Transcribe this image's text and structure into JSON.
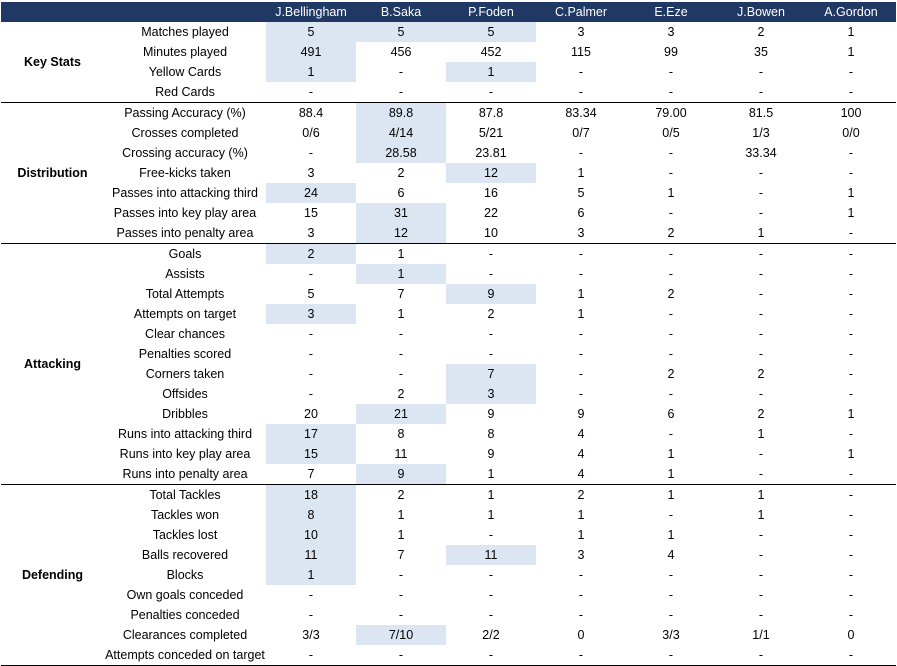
{
  "highlight_color": "#dce6f2",
  "header_color": "#1f3864",
  "players": [
    "J.Bellingham",
    "B.Saka",
    "P.Foden",
    "C.Palmer",
    "E.Eze",
    "J.Bowen",
    "A.Gordon"
  ],
  "groups": [
    {
      "name": "Key Stats",
      "rows": [
        {
          "metric": "Matches played",
          "values": [
            "5",
            "5",
            "5",
            "3",
            "3",
            "2",
            "1"
          ],
          "highlight": [
            0,
            1,
            2
          ]
        },
        {
          "metric": "Minutes played",
          "values": [
            "491",
            "456",
            "452",
            "115",
            "99",
            "35",
            "1"
          ],
          "highlight": [
            0
          ]
        },
        {
          "metric": "Yellow Cards",
          "values": [
            "1",
            "-",
            "1",
            "-",
            "-",
            "-",
            "-"
          ],
          "highlight": [
            0,
            2
          ]
        },
        {
          "metric": "Red Cards",
          "values": [
            "-",
            "-",
            "-",
            "-",
            "-",
            "-",
            "-"
          ],
          "highlight": []
        }
      ]
    },
    {
      "name": "Distribution",
      "rows": [
        {
          "metric": "Passing Accuracy (%)",
          "values": [
            "88.4",
            "89.8",
            "87.8",
            "83.34",
            "79.00",
            "81.5",
            "100"
          ],
          "highlight": [
            1
          ]
        },
        {
          "metric": "Crosses completed",
          "values": [
            "0/6",
            "4/14",
            "5/21",
            "0/7",
            "0/5",
            "1/3",
            "0/0"
          ],
          "highlight": [
            1
          ]
        },
        {
          "metric": "Crossing accuracy (%)",
          "values": [
            "-",
            "28.58",
            "23.81",
            "-",
            "-",
            "33.34",
            "-"
          ],
          "highlight": [
            1
          ]
        },
        {
          "metric": "Free-kicks taken",
          "values": [
            "3",
            "2",
            "12",
            "1",
            "-",
            "-",
            "-"
          ],
          "highlight": [
            2
          ]
        },
        {
          "metric": "Passes into attacking third",
          "values": [
            "24",
            "6",
            "16",
            "5",
            "1",
            "-",
            "1"
          ],
          "highlight": [
            0
          ]
        },
        {
          "metric": "Passes into key play area",
          "values": [
            "15",
            "31",
            "22",
            "6",
            "-",
            "-",
            "1"
          ],
          "highlight": [
            1
          ]
        },
        {
          "metric": "Passes into penalty area",
          "values": [
            "3",
            "12",
            "10",
            "3",
            "2",
            "1",
            "-"
          ],
          "highlight": [
            1
          ]
        }
      ]
    },
    {
      "name": "Attacking",
      "rows": [
        {
          "metric": "Goals",
          "values": [
            "2",
            "1",
            "-",
            "-",
            "-",
            "-",
            "-"
          ],
          "highlight": [
            0
          ]
        },
        {
          "metric": "Assists",
          "values": [
            "-",
            "1",
            "-",
            "-",
            "-",
            "-",
            "-"
          ],
          "highlight": [
            1
          ]
        },
        {
          "metric": "Total Attempts",
          "values": [
            "5",
            "7",
            "9",
            "1",
            "2",
            "-",
            "-"
          ],
          "highlight": [
            2
          ]
        },
        {
          "metric": "Attempts on target",
          "values": [
            "3",
            "1",
            "2",
            "1",
            "-",
            "-",
            "-"
          ],
          "highlight": [
            0
          ]
        },
        {
          "metric": "Clear chances",
          "values": [
            "-",
            "-",
            "-",
            "-",
            "-",
            "-",
            "-"
          ],
          "highlight": []
        },
        {
          "metric": "Penalties scored",
          "values": [
            "-",
            "-",
            "-",
            "-",
            "-",
            "-",
            "-"
          ],
          "highlight": []
        },
        {
          "metric": "Corners taken",
          "values": [
            "-",
            "-",
            "7",
            "-",
            "2",
            "2",
            "-"
          ],
          "highlight": [
            2
          ]
        },
        {
          "metric": "Offsides",
          "values": [
            "-",
            "2",
            "3",
            "-",
            "-",
            "-",
            "-"
          ],
          "highlight": [
            2
          ]
        },
        {
          "metric": "Dribbles",
          "values": [
            "20",
            "21",
            "9",
            "9",
            "6",
            "2",
            "1"
          ],
          "highlight": [
            1
          ]
        },
        {
          "metric": "Runs into attacking third",
          "values": [
            "17",
            "8",
            "8",
            "4",
            "-",
            "1",
            "-"
          ],
          "highlight": [
            0
          ]
        },
        {
          "metric": "Runs into key play area",
          "values": [
            "15",
            "11",
            "9",
            "4",
            "1",
            "-",
            "1"
          ],
          "highlight": [
            0
          ]
        },
        {
          "metric": "Runs into penalty area",
          "values": [
            "7",
            "9",
            "1",
            "4",
            "1",
            "-",
            "-"
          ],
          "highlight": [
            1
          ]
        }
      ]
    },
    {
      "name": "Defending",
      "rows": [
        {
          "metric": "Total Tackles",
          "values": [
            "18",
            "2",
            "1",
            "2",
            "1",
            "1",
            "-"
          ],
          "highlight": [
            0
          ]
        },
        {
          "metric": "Tackles won",
          "values": [
            "8",
            "1",
            "1",
            "1",
            "-",
            "1",
            "-"
          ],
          "highlight": [
            0
          ]
        },
        {
          "metric": "Tackles lost",
          "values": [
            "10",
            "1",
            "-",
            "1",
            "1",
            "-",
            "-"
          ],
          "highlight": [
            0
          ]
        },
        {
          "metric": "Balls recovered",
          "values": [
            "11",
            "7",
            "11",
            "3",
            "4",
            "-",
            "-"
          ],
          "highlight": [
            0,
            2
          ]
        },
        {
          "metric": "Blocks",
          "values": [
            "1",
            "-",
            "-",
            "-",
            "-",
            "-",
            "-"
          ],
          "highlight": [
            0
          ]
        },
        {
          "metric": "Own goals conceded",
          "values": [
            "-",
            "-",
            "-",
            "-",
            "-",
            "-",
            "-"
          ],
          "highlight": []
        },
        {
          "metric": "Penalties conceded",
          "values": [
            "-",
            "-",
            "-",
            "-",
            "-",
            "-",
            "-"
          ],
          "highlight": []
        },
        {
          "metric": "Clearances completed",
          "values": [
            "3/3",
            "7/10",
            "2/2",
            "0",
            "3/3",
            "1/1",
            "0"
          ],
          "highlight": [
            1
          ]
        },
        {
          "metric": "Attempts conceded on target",
          "values": [
            "-",
            "-",
            "-",
            "-",
            "-",
            "-",
            "-"
          ],
          "highlight": []
        }
      ]
    }
  ]
}
